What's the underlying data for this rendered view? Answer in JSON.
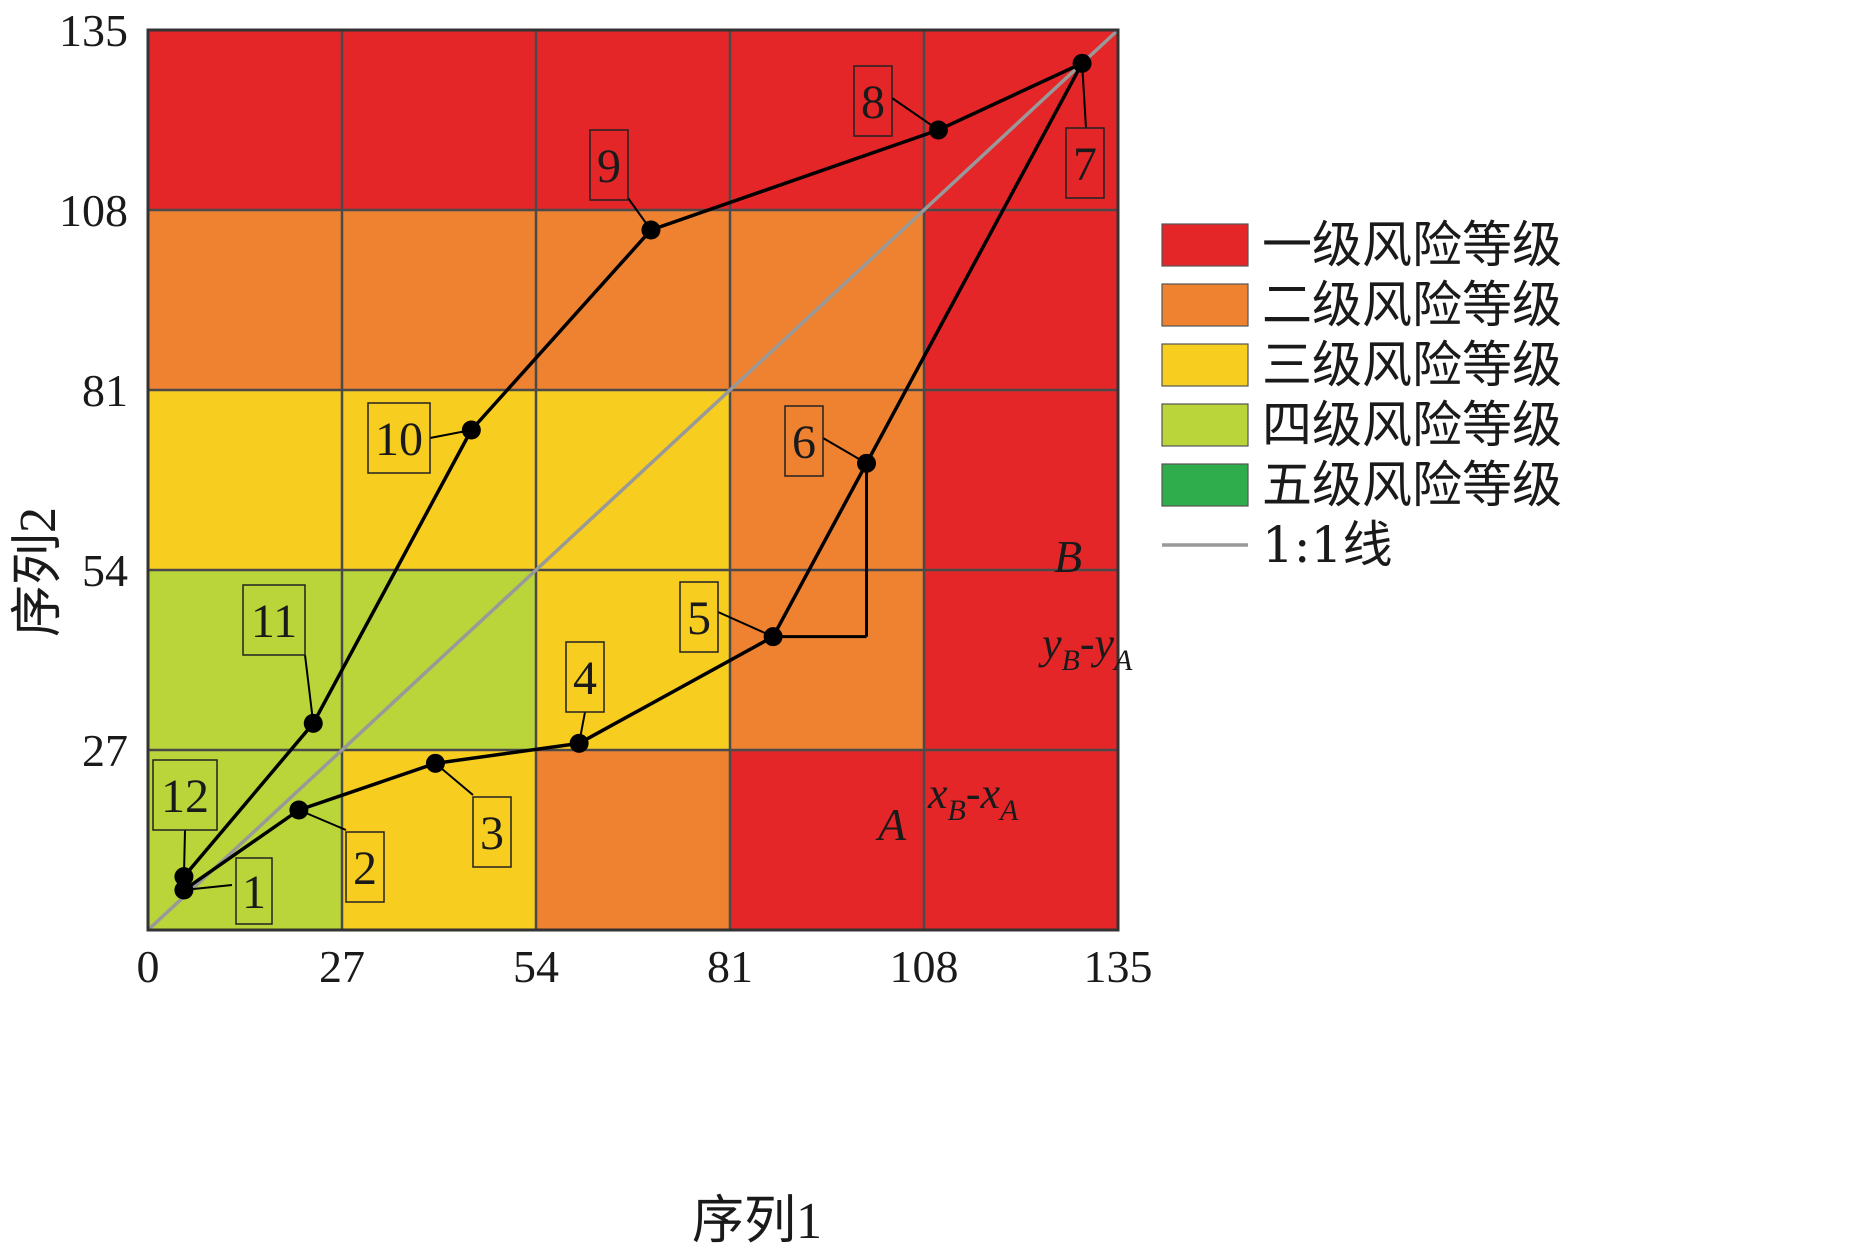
{
  "chart_data": {
    "type": "scatter",
    "xlabel": "序列1",
    "ylabel": "序列2",
    "xlim": [
      0,
      135
    ],
    "ylim": [
      0,
      135
    ],
    "x_ticks": [
      "0",
      "27",
      "54",
      "81",
      "108",
      "135"
    ],
    "y_ticks": [
      "27",
      "54",
      "81",
      "108",
      "135"
    ],
    "grid": true,
    "grid_step": 27,
    "zone_colors": {
      "level1": "#e42628",
      "level2": "#ee8231",
      "level3": "#f7cd1f",
      "level4": "#b9d53a",
      "level5": "#2fac4c"
    },
    "zones": [
      [
        "level4",
        "level3",
        "level2",
        "level1",
        "level1"
      ],
      [
        "level4",
        "level4",
        "level3",
        "level2",
        "level1"
      ],
      [
        "level3",
        "level3",
        "level3",
        "level2",
        "level1"
      ],
      [
        "level2",
        "level2",
        "level2",
        "level2",
        "level1"
      ],
      [
        "level1",
        "level1",
        "level1",
        "level1",
        "level1"
      ]
    ],
    "points": [
      {
        "label": "1",
        "x": 5,
        "y": 6
      },
      {
        "label": "2",
        "x": 21,
        "y": 18
      },
      {
        "label": "3",
        "x": 40,
        "y": 25
      },
      {
        "label": "4",
        "x": 60,
        "y": 28
      },
      {
        "label": "5",
        "x": 87,
        "y": 44
      },
      {
        "label": "6",
        "x": 100,
        "y": 70
      },
      {
        "label": "7",
        "x": 130,
        "y": 130
      },
      {
        "label": "8",
        "x": 110,
        "y": 120
      },
      {
        "label": "9",
        "x": 70,
        "y": 105
      },
      {
        "label": "10",
        "x": 45,
        "y": 75
      },
      {
        "label": "11",
        "x": 23,
        "y": 31
      },
      {
        "label": "12",
        "x": 5,
        "y": 8
      }
    ],
    "line_color": "#000000",
    "reference_line": {
      "name": "1:1线",
      "from": [
        0,
        0
      ],
      "to": [
        135,
        135
      ],
      "color": "#999999"
    },
    "annotations": {
      "point_a": "A",
      "point_b": "B",
      "dy_label": {
        "y": "y",
        "sub_b": "B",
        "dash": "-",
        "sub_a": "A"
      },
      "dx_label": {
        "x": "x",
        "sub_b": "B",
        "dash": "-",
        "sub_a": "A"
      }
    },
    "legend": {
      "placement": "right",
      "items": [
        {
          "text": "一级风险等级",
          "color": "#e42628",
          "kind": "box"
        },
        {
          "text": "二级风险等级",
          "color": "#ee8231",
          "kind": "box"
        },
        {
          "text": "三级风险等级",
          "color": "#f7cd1f",
          "kind": "box"
        },
        {
          "text": "四级风险等级",
          "color": "#b9d53a",
          "kind": "box"
        },
        {
          "text": "五级风险等级",
          "color": "#2fac4c",
          "kind": "box"
        },
        {
          "text": "1:1线",
          "color": "#999999",
          "kind": "line"
        }
      ]
    }
  }
}
